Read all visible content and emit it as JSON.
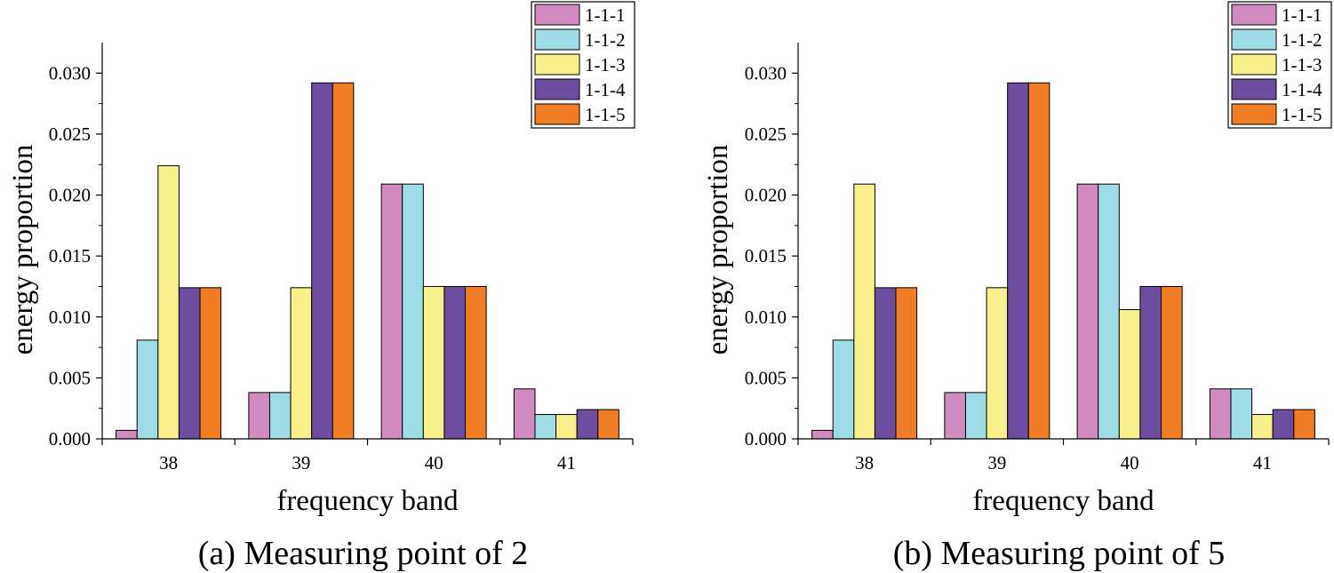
{
  "chart_data": [
    {
      "type": "bar",
      "caption": "(a) Measuring point of 2",
      "xlabel": "frequency band",
      "ylabel": "energy proportion",
      "categories": [
        "38",
        "39",
        "40",
        "41"
      ],
      "ylim": [
        0,
        0.0325
      ],
      "yticks": [
        "0.000",
        "0.005",
        "0.010",
        "0.015",
        "0.020",
        "0.025",
        "0.030"
      ],
      "legend_position": "top-right",
      "series": [
        {
          "name": "1-1-1",
          "color": "#d18bbf",
          "values": [
            0.0007,
            0.0038,
            0.0209,
            0.0041
          ]
        },
        {
          "name": "1-1-2",
          "color": "#9fdde6",
          "values": [
            0.0081,
            0.0038,
            0.0209,
            0.002
          ]
        },
        {
          "name": "1-1-3",
          "color": "#f8f08a",
          "values": [
            0.0224,
            0.0124,
            0.0125,
            0.002
          ]
        },
        {
          "name": "1-1-4",
          "color": "#6c4d9f",
          "values": [
            0.0124,
            0.0292,
            0.0125,
            0.0024
          ]
        },
        {
          "name": "1-1-5",
          "color": "#f07d24",
          "values": [
            0.0124,
            0.0292,
            0.0125,
            0.0024
          ]
        }
      ]
    },
    {
      "type": "bar",
      "caption": "(b) Measuring point of 5",
      "xlabel": "frequency band",
      "ylabel": "energy proportion",
      "categories": [
        "38",
        "39",
        "40",
        "41"
      ],
      "ylim": [
        0,
        0.0325
      ],
      "yticks": [
        "0.000",
        "0.005",
        "0.010",
        "0.015",
        "0.020",
        "0.025",
        "0.030"
      ],
      "legend_position": "top-right",
      "series": [
        {
          "name": "1-1-1",
          "color": "#d18bbf",
          "values": [
            0.0007,
            0.0038,
            0.0209,
            0.0041
          ]
        },
        {
          "name": "1-1-2",
          "color": "#9fdde6",
          "values": [
            0.0081,
            0.0038,
            0.0209,
            0.0041
          ]
        },
        {
          "name": "1-1-3",
          "color": "#f8f08a",
          "values": [
            0.0209,
            0.0124,
            0.0106,
            0.002
          ]
        },
        {
          "name": "1-1-4",
          "color": "#6c4d9f",
          "values": [
            0.0124,
            0.0292,
            0.0125,
            0.0024
          ]
        },
        {
          "name": "1-1-5",
          "color": "#f07d24",
          "values": [
            0.0124,
            0.0292,
            0.0125,
            0.0024
          ]
        }
      ]
    }
  ]
}
